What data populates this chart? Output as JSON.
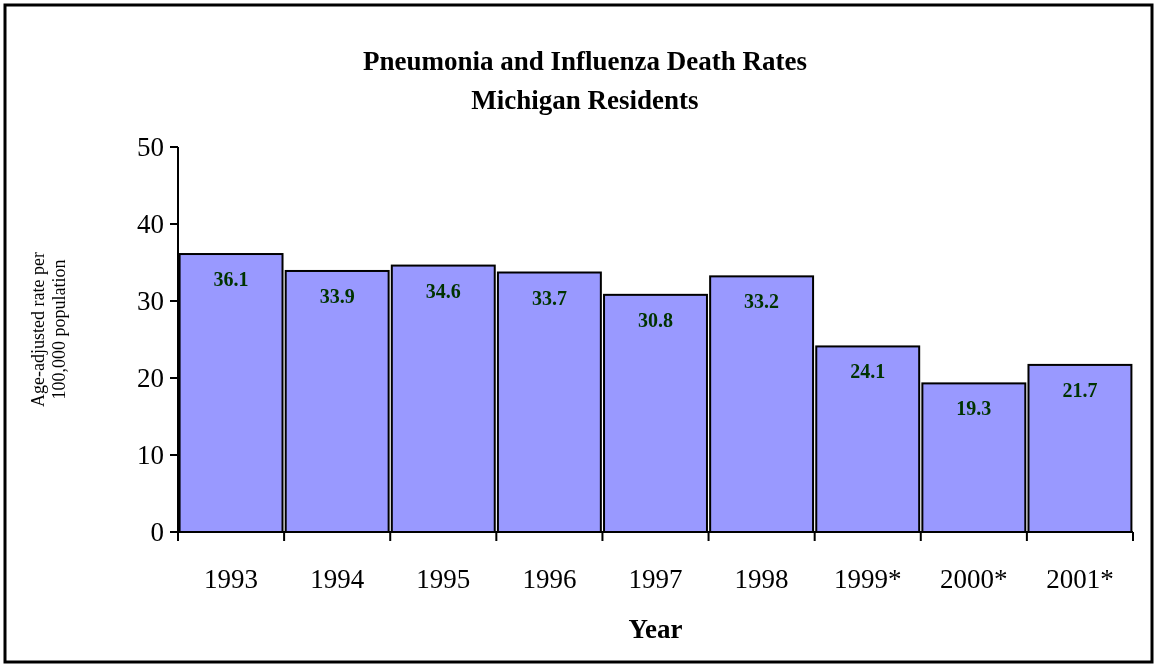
{
  "chart_data": {
    "type": "bar",
    "title": "Pneumonia and Influenza Death Rates",
    "subtitle": "Michigan Residents",
    "xlabel": "Year",
    "ylabel": "Age-adjusted rate per 100,000 population",
    "categories": [
      "1993",
      "1994",
      "1995",
      "1996",
      "1997",
      "1998",
      "1999*",
      "2000*",
      "2001*"
    ],
    "values": [
      36.1,
      33.9,
      34.6,
      33.7,
      30.8,
      33.2,
      24.1,
      19.3,
      21.7
    ],
    "color": "#9999ff",
    "ylim": [
      0,
      50
    ],
    "yticks": [
      0,
      10,
      20,
      30,
      40,
      50
    ],
    "data_labels": true,
    "grid": false
  }
}
